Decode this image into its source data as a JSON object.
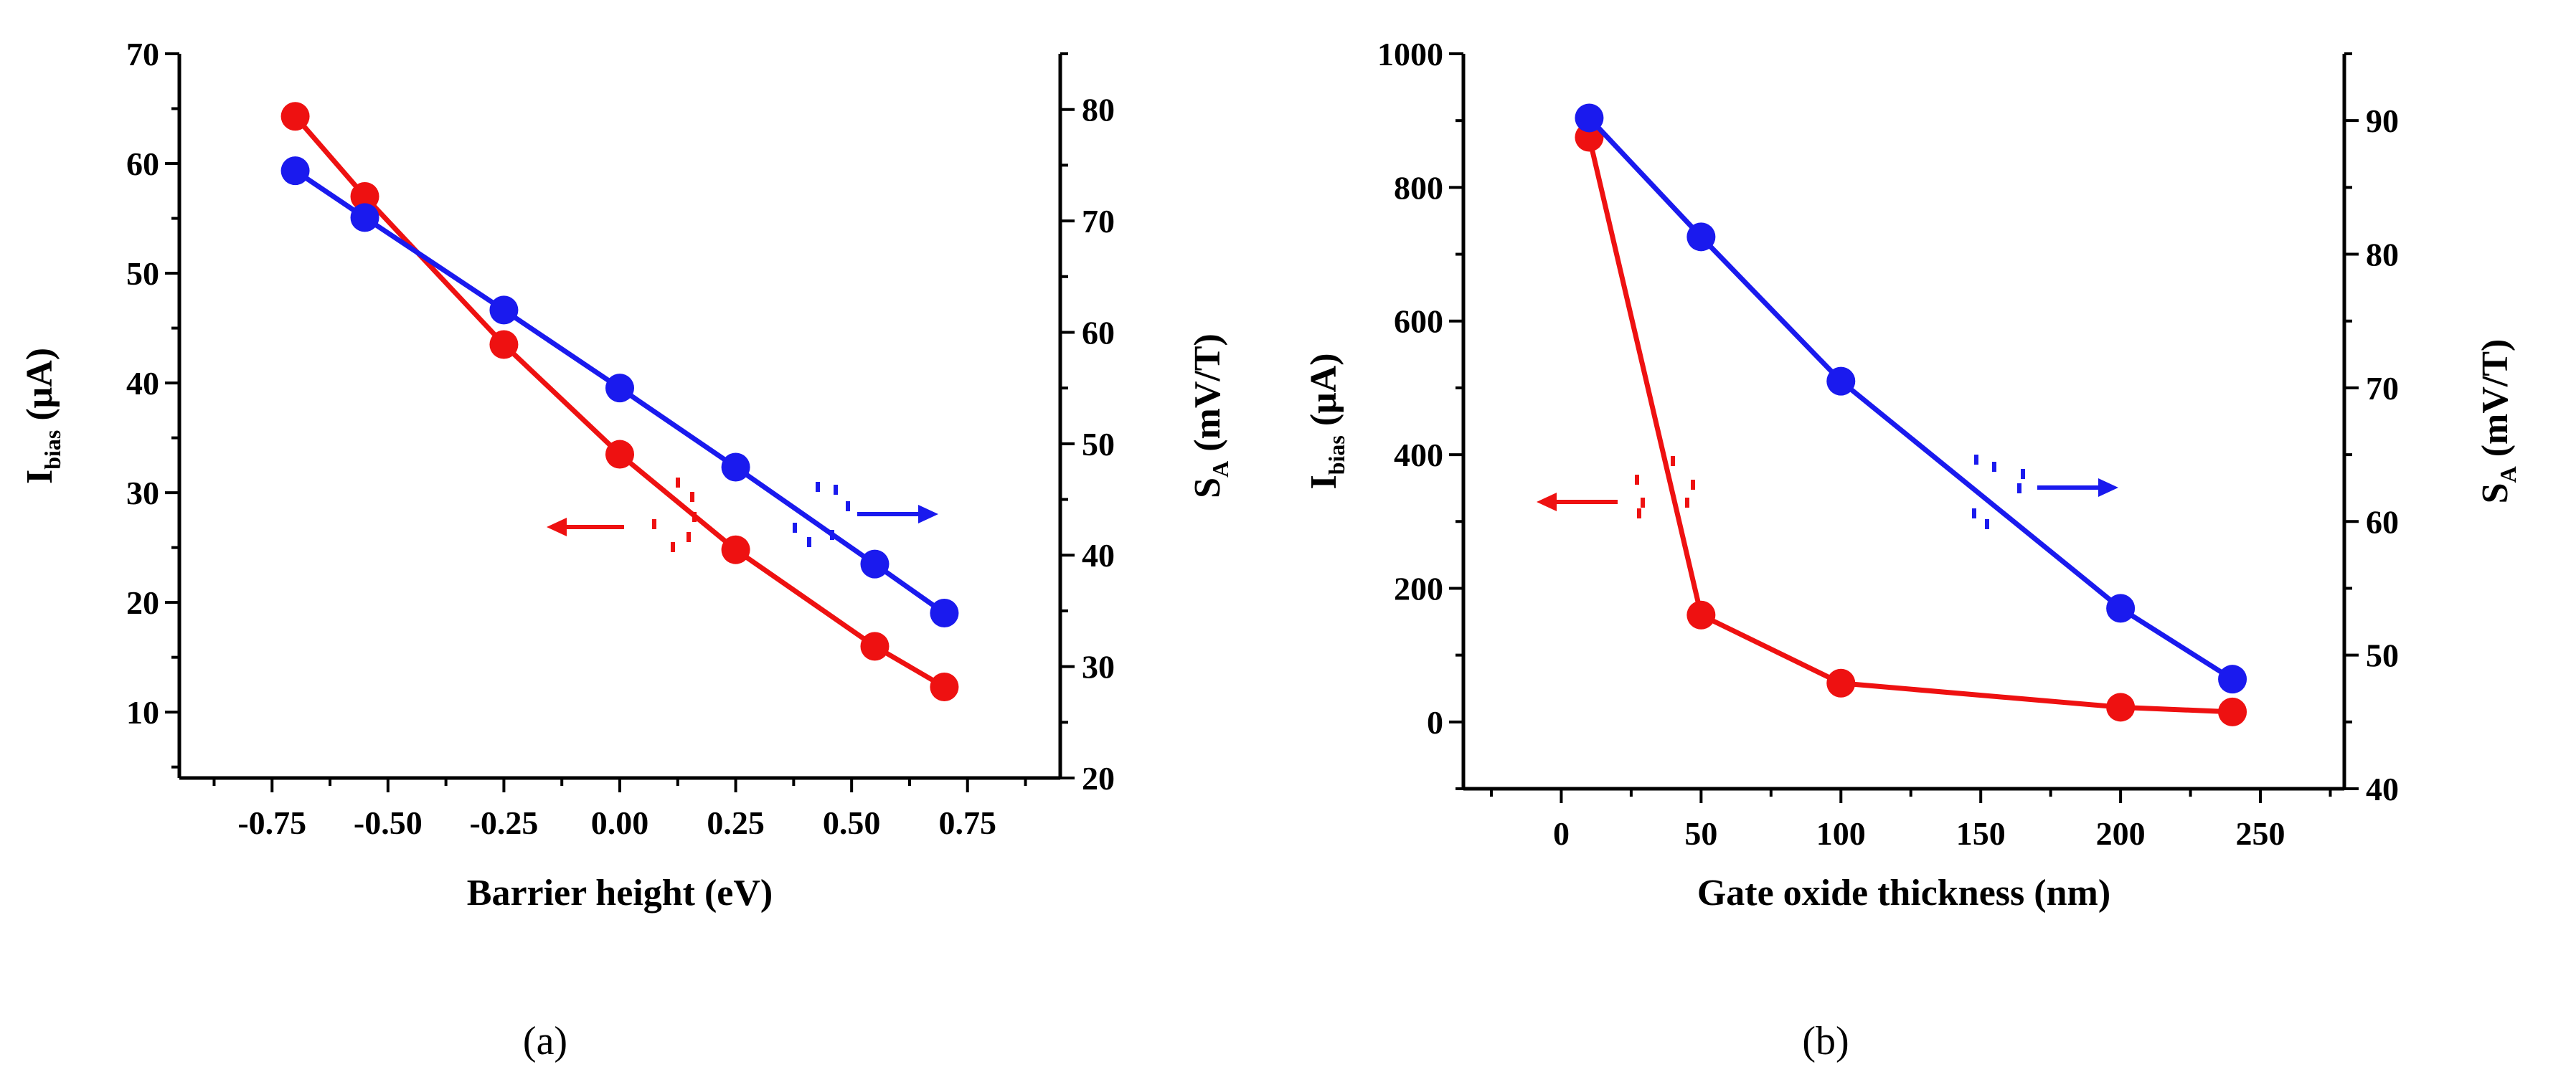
{
  "chart_data": [
    {
      "type": "line",
      "caption": "(a)",
      "xlabel": "Barrier height (eV)",
      "ylabel_left": {
        "main": "I",
        "sub": "bias",
        "rest": " (μA)"
      },
      "ylabel_right": {
        "main": "S",
        "sub": "A",
        "rest": " (mV/T)"
      },
      "xlim": [
        -0.95,
        0.95
      ],
      "ylim_left": [
        4,
        70
      ],
      "ylim_right": [
        20,
        85
      ],
      "xticks": [
        -0.75,
        -0.5,
        -0.25,
        0.0,
        0.25,
        0.5,
        0.75
      ],
      "xtick_labels": [
        "-0.75",
        "-0.50",
        "-0.25",
        "0.00",
        "0.25",
        "0.50",
        "0.75"
      ],
      "yticks_left": [
        10,
        20,
        30,
        40,
        50,
        60,
        70
      ],
      "ytick_labels_left": [
        "10",
        "20",
        "30",
        "40",
        "50",
        "60",
        "70"
      ],
      "yticks_right": [
        20,
        30,
        40,
        50,
        60,
        70,
        80
      ],
      "ytick_labels_right": [
        "20",
        "30",
        "40",
        "50",
        "60",
        "70",
        "80"
      ],
      "series": [
        {
          "name": "I_bias",
          "axis": "left",
          "color": "#ee1111",
          "x": [
            -0.7,
            -0.55,
            -0.25,
            0.0,
            0.25,
            0.55,
            0.7
          ],
          "values": [
            64.3,
            57.0,
            43.5,
            33.5,
            24.8,
            16.0,
            12.3
          ]
        },
        {
          "name": "S_A",
          "axis": "right",
          "color": "#1a1aee",
          "x": [
            -0.7,
            -0.55,
            -0.25,
            0.0,
            0.25,
            0.55,
            0.7
          ],
          "values": [
            74.5,
            70.3,
            62.0,
            55.0,
            47.9,
            39.2,
            34.8
          ]
        }
      ],
      "annotations": [
        {
          "series": "I_bias",
          "arrow": "left"
        },
        {
          "series": "S_A",
          "arrow": "right"
        }
      ]
    },
    {
      "type": "line",
      "caption": "(b)",
      "xlabel": "Gate oxide thickness (nm)",
      "ylabel_left": {
        "main": "I",
        "sub": "bias",
        "rest": " (μA)"
      },
      "ylabel_right": {
        "main": "S",
        "sub": "A",
        "rest": " (mV/T)"
      },
      "xlim": [
        -35,
        280
      ],
      "ylim_left": [
        -100,
        1000
      ],
      "ylim_right": [
        40,
        95
      ],
      "xticks": [
        0,
        50,
        100,
        150,
        200,
        250
      ],
      "xtick_labels": [
        "0",
        "50",
        "100",
        "150",
        "200",
        "250"
      ],
      "yticks_left": [
        0,
        200,
        400,
        600,
        800,
        1000
      ],
      "ytick_labels_left": [
        "0",
        "200",
        "400",
        "600",
        "800",
        "1000"
      ],
      "yticks_right": [
        40,
        50,
        60,
        70,
        80,
        90
      ],
      "ytick_labels_right": [
        "40",
        "50",
        "60",
        "70",
        "80",
        "90"
      ],
      "series": [
        {
          "name": "I_bias",
          "axis": "left",
          "color": "#ee1111",
          "x": [
            10,
            50,
            100,
            200,
            240
          ],
          "values": [
            875,
            160,
            58,
            22,
            15
          ]
        },
        {
          "name": "S_A",
          "axis": "right",
          "color": "#1a1aee",
          "x": [
            10,
            50,
            100,
            200,
            240
          ],
          "values": [
            90.2,
            81.3,
            70.5,
            53.5,
            48.2
          ]
        }
      ],
      "annotations": [
        {
          "series": "I_bias",
          "arrow": "left"
        },
        {
          "series": "S_A",
          "arrow": "right"
        }
      ]
    }
  ]
}
